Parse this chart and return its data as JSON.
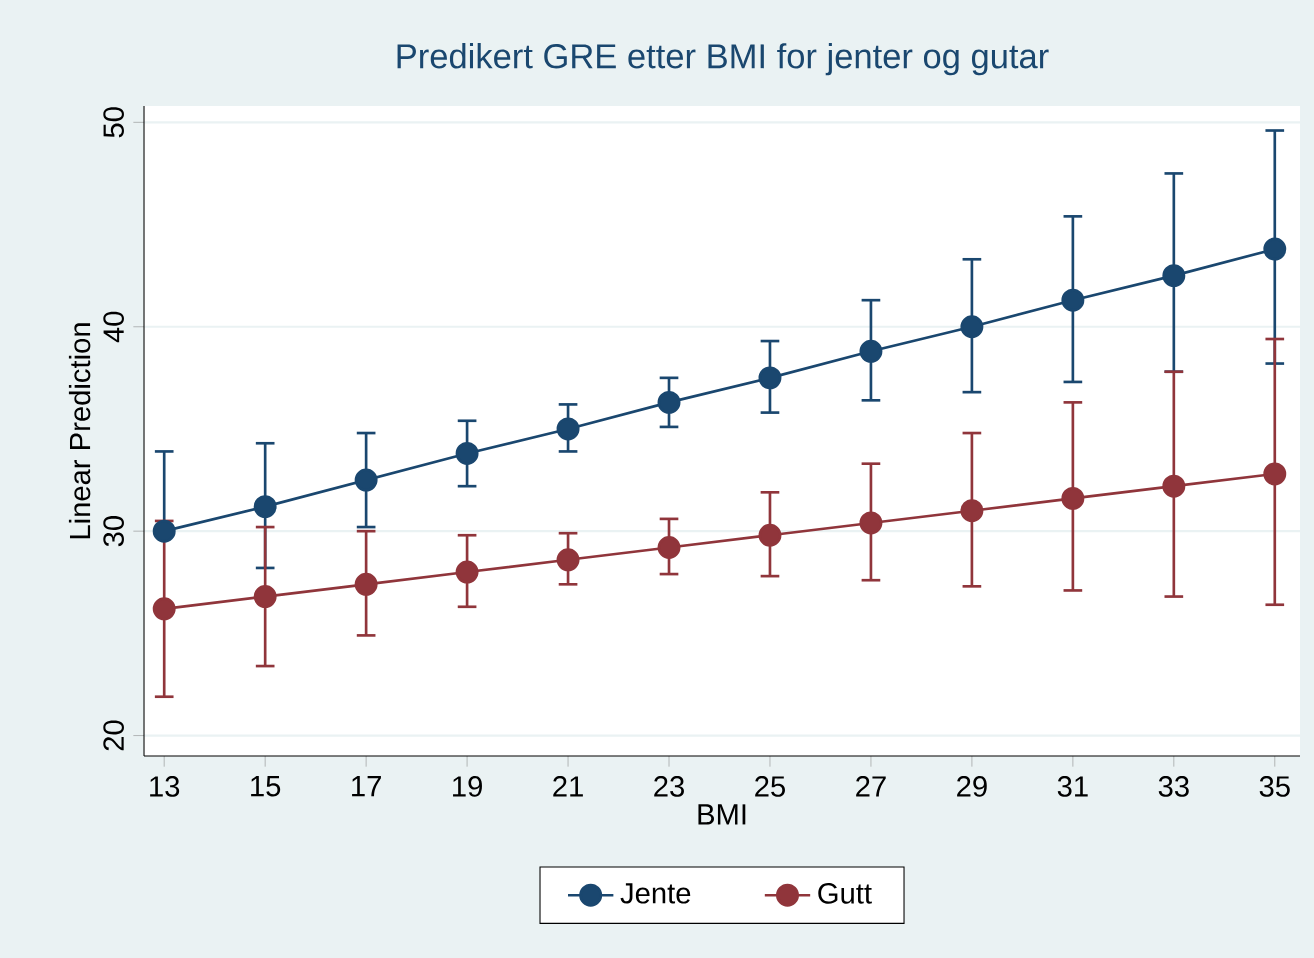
{
  "chart_data": {
    "type": "line",
    "title": "Predikert GRE etter BMI for jenter og gutar",
    "xlabel": "BMI",
    "ylabel": "Linear Prediction",
    "x": [
      13,
      15,
      17,
      19,
      21,
      23,
      25,
      27,
      29,
      31,
      33,
      35
    ],
    "series": [
      {
        "name": "Jente",
        "color": "#1a476f",
        "values": [
          30.0,
          31.2,
          32.5,
          33.8,
          35.0,
          36.3,
          37.5,
          38.8,
          40.0,
          41.3,
          42.5,
          43.8
        ],
        "errors": [
          [
            30.0,
            33.9
          ],
          [
            28.2,
            34.3
          ],
          [
            30.2,
            34.8
          ],
          [
            32.2,
            35.4
          ],
          [
            33.9,
            36.2
          ],
          [
            35.1,
            37.5
          ],
          [
            35.8,
            39.3
          ],
          [
            36.4,
            41.3
          ],
          [
            36.8,
            43.3
          ],
          [
            37.3,
            45.4
          ],
          [
            37.8,
            47.5
          ],
          [
            38.2,
            49.6
          ]
        ]
      },
      {
        "name": "Gutt",
        "color": "#90353b",
        "values": [
          26.2,
          26.8,
          27.4,
          28.0,
          28.6,
          29.2,
          29.8,
          30.4,
          31.0,
          31.6,
          32.2,
          32.8
        ],
        "errors": [
          [
            21.9,
            30.5
          ],
          [
            23.4,
            30.2
          ],
          [
            24.9,
            30.0
          ],
          [
            26.3,
            29.8
          ],
          [
            27.4,
            29.9
          ],
          [
            27.9,
            30.6
          ],
          [
            27.8,
            31.9
          ],
          [
            27.6,
            33.3
          ],
          [
            27.3,
            34.8
          ],
          [
            27.1,
            36.3
          ],
          [
            26.8,
            37.8
          ],
          [
            26.4,
            39.4
          ]
        ]
      }
    ],
    "xlim": [
      12.6,
      35.5
    ],
    "ylim": [
      19,
      50.8
    ],
    "xticks": [
      13,
      15,
      17,
      19,
      21,
      23,
      25,
      27,
      29,
      31,
      33,
      35
    ],
    "yticks": [
      20,
      30,
      40,
      50
    ],
    "grid": "y",
    "legend": "bottom",
    "marker": "circle",
    "line_style": "solid"
  }
}
